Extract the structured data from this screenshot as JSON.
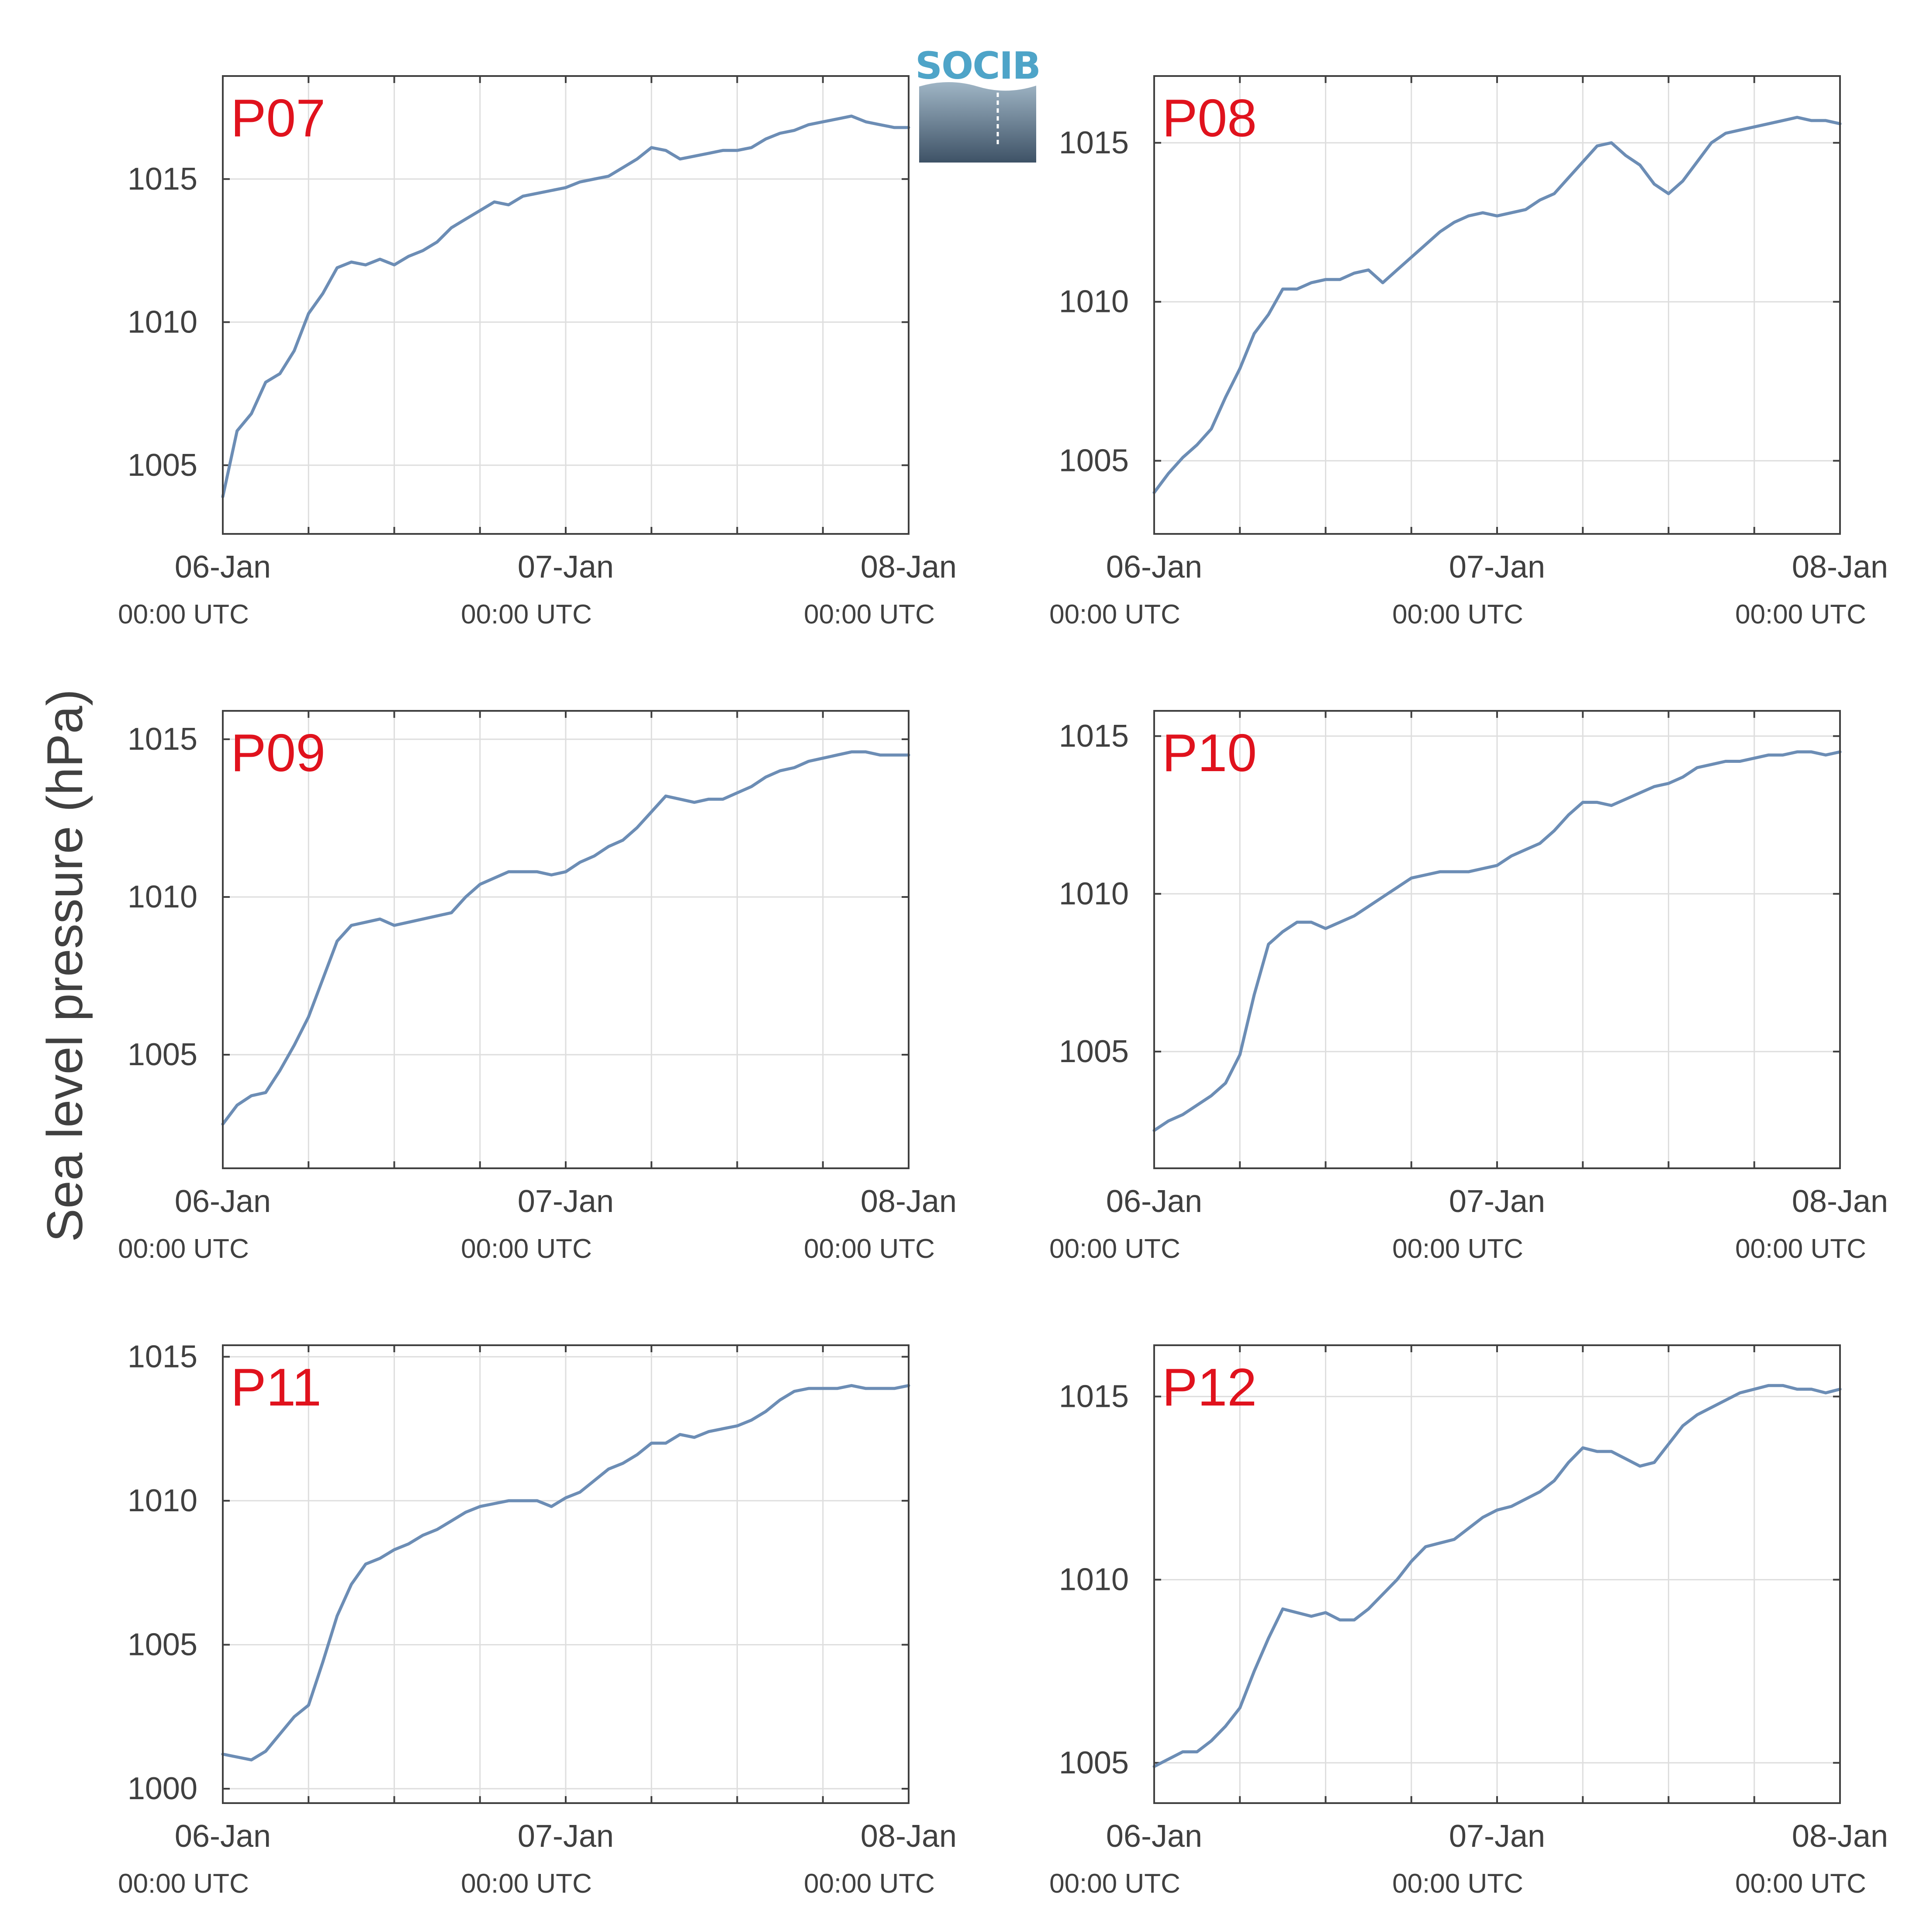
{
  "figure": {
    "ylabel": "Sea level pressure (hPa)",
    "logo_text": "SOCIB"
  },
  "colors": {
    "line": "#6c8db5",
    "station_label": "#e0121d",
    "axis": "#404040",
    "grid": "#dedede"
  },
  "chart_data": [
    {
      "type": "line",
      "title": "P07",
      "x_tick_labels": [
        {
          "date": "06-Jan",
          "time": "00:00 UTC"
        },
        {
          "date": "07-Jan",
          "time": "00:00 UTC"
        },
        {
          "date": "08-Jan",
          "time": "00:00 UTC"
        }
      ],
      "x_ticks_hours": [
        0,
        6,
        12,
        18,
        24,
        30,
        36,
        42,
        48
      ],
      "xlim_hours": [
        0,
        48
      ],
      "ylim": [
        1002.6,
        1018.6
      ],
      "yticks": [
        1005,
        1010,
        1015
      ],
      "grid": true,
      "x_hours": [
        0,
        1,
        2,
        3,
        4,
        5,
        6,
        7,
        8,
        9,
        10,
        11,
        12,
        13,
        14,
        15,
        16,
        17,
        18,
        19,
        20,
        21,
        22,
        23,
        24,
        25,
        26,
        27,
        28,
        29,
        30,
        31,
        32,
        33,
        34,
        35,
        36,
        37,
        38,
        39,
        40,
        41,
        42,
        43,
        44,
        45,
        46,
        47,
        48
      ],
      "y": [
        1003.9,
        1006.2,
        1006.8,
        1007.9,
        1008.2,
        1009.0,
        1010.3,
        1011.0,
        1011.9,
        1012.1,
        1012.0,
        1012.2,
        1012.0,
        1012.3,
        1012.5,
        1012.8,
        1013.3,
        1013.6,
        1013.9,
        1014.2,
        1014.1,
        1014.4,
        1014.5,
        1014.6,
        1014.7,
        1014.9,
        1015.0,
        1015.1,
        1015.4,
        1015.7,
        1016.1,
        1016.0,
        1015.7,
        1015.8,
        1015.9,
        1016.0,
        1016.0,
        1016.1,
        1016.4,
        1016.6,
        1016.7,
        1016.9,
        1017.0,
        1017.1,
        1017.2,
        1017.0,
        1016.9,
        1016.8,
        1016.8
      ]
    },
    {
      "type": "line",
      "title": "P08",
      "x_tick_labels": [
        {
          "date": "06-Jan",
          "time": "00:00 UTC"
        },
        {
          "date": "07-Jan",
          "time": "00:00 UTC"
        },
        {
          "date": "08-Jan",
          "time": "00:00 UTC"
        }
      ],
      "x_ticks_hours": [
        0,
        6,
        12,
        18,
        24,
        30,
        36,
        42,
        48
      ],
      "xlim_hours": [
        0,
        48
      ],
      "ylim": [
        1002.7,
        1017.1
      ],
      "yticks": [
        1005,
        1010,
        1015
      ],
      "grid": true,
      "x_hours": [
        0,
        1,
        2,
        3,
        4,
        5,
        6,
        7,
        8,
        9,
        10,
        11,
        12,
        13,
        14,
        15,
        16,
        17,
        18,
        19,
        20,
        21,
        22,
        23,
        24,
        25,
        26,
        27,
        28,
        29,
        30,
        31,
        32,
        33,
        34,
        35,
        36,
        37,
        38,
        39,
        40,
        41,
        42,
        43,
        44,
        45,
        46,
        47,
        48
      ],
      "y": [
        1004.0,
        1004.6,
        1005.1,
        1005.5,
        1006.0,
        1007.0,
        1007.9,
        1009.0,
        1009.6,
        1010.4,
        1010.4,
        1010.6,
        1010.7,
        1010.7,
        1010.9,
        1011.0,
        1010.6,
        1011.0,
        1011.4,
        1011.8,
        1012.2,
        1012.5,
        1012.7,
        1012.8,
        1012.7,
        1012.8,
        1012.9,
        1013.2,
        1013.4,
        1013.9,
        1014.4,
        1014.9,
        1015.0,
        1014.6,
        1014.3,
        1013.7,
        1013.4,
        1013.8,
        1014.4,
        1015.0,
        1015.3,
        1015.4,
        1015.5,
        1015.6,
        1015.7,
        1015.8,
        1015.7,
        1015.7,
        1015.6
      ]
    },
    {
      "type": "line",
      "title": "P09",
      "x_tick_labels": [
        {
          "date": "06-Jan",
          "time": "00:00 UTC"
        },
        {
          "date": "07-Jan",
          "time": "00:00 UTC"
        },
        {
          "date": "08-Jan",
          "time": "00:00 UTC"
        }
      ],
      "x_ticks_hours": [
        0,
        6,
        12,
        18,
        24,
        30,
        36,
        42,
        48
      ],
      "xlim_hours": [
        0,
        48
      ],
      "ylim": [
        1001.4,
        1015.9
      ],
      "yticks": [
        1005,
        1010,
        1015
      ],
      "grid": true,
      "x_hours": [
        0,
        1,
        2,
        3,
        4,
        5,
        6,
        7,
        8,
        9,
        10,
        11,
        12,
        13,
        14,
        15,
        16,
        17,
        18,
        19,
        20,
        21,
        22,
        23,
        24,
        25,
        26,
        27,
        28,
        29,
        30,
        31,
        32,
        33,
        34,
        35,
        36,
        37,
        38,
        39,
        40,
        41,
        42,
        43,
        44,
        45,
        46,
        47,
        48
      ],
      "y": [
        1002.8,
        1003.4,
        1003.7,
        1003.8,
        1004.5,
        1005.3,
        1006.2,
        1007.4,
        1008.6,
        1009.1,
        1009.2,
        1009.3,
        1009.1,
        1009.2,
        1009.3,
        1009.4,
        1009.5,
        1010.0,
        1010.4,
        1010.6,
        1010.8,
        1010.8,
        1010.8,
        1010.7,
        1010.8,
        1011.1,
        1011.3,
        1011.6,
        1011.8,
        1012.2,
        1012.7,
        1013.2,
        1013.1,
        1013.0,
        1013.1,
        1013.1,
        1013.3,
        1013.5,
        1013.8,
        1014.0,
        1014.1,
        1014.3,
        1014.4,
        1014.5,
        1014.6,
        1014.6,
        1014.5,
        1014.5,
        1014.5
      ]
    },
    {
      "type": "line",
      "title": "P10",
      "x_tick_labels": [
        {
          "date": "06-Jan",
          "time": "00:00 UTC"
        },
        {
          "date": "07-Jan",
          "time": "00:00 UTC"
        },
        {
          "date": "08-Jan",
          "time": "00:00 UTC"
        }
      ],
      "x_ticks_hours": [
        0,
        6,
        12,
        18,
        24,
        30,
        36,
        42,
        48
      ],
      "xlim_hours": [
        0,
        48
      ],
      "ylim": [
        1001.3,
        1015.8
      ],
      "yticks": [
        1005,
        1010,
        1015
      ],
      "grid": true,
      "x_hours": [
        0,
        1,
        2,
        3,
        4,
        5,
        6,
        7,
        8,
        9,
        10,
        11,
        12,
        13,
        14,
        15,
        16,
        17,
        18,
        19,
        20,
        21,
        22,
        23,
        24,
        25,
        26,
        27,
        28,
        29,
        30,
        31,
        32,
        33,
        34,
        35,
        36,
        37,
        38,
        39,
        40,
        41,
        42,
        43,
        44,
        45,
        46,
        47,
        48
      ],
      "y": [
        1002.5,
        1002.8,
        1003.0,
        1003.3,
        1003.6,
        1004.0,
        1004.9,
        1006.8,
        1008.4,
        1008.8,
        1009.1,
        1009.1,
        1008.9,
        1009.1,
        1009.3,
        1009.6,
        1009.9,
        1010.2,
        1010.5,
        1010.6,
        1010.7,
        1010.7,
        1010.7,
        1010.8,
        1010.9,
        1011.2,
        1011.4,
        1011.6,
        1012.0,
        1012.5,
        1012.9,
        1012.9,
        1012.8,
        1013.0,
        1013.2,
        1013.4,
        1013.5,
        1013.7,
        1014.0,
        1014.1,
        1014.2,
        1014.2,
        1014.3,
        1014.4,
        1014.4,
        1014.5,
        1014.5,
        1014.4,
        1014.5
      ]
    },
    {
      "type": "line",
      "title": "P11",
      "x_tick_labels": [
        {
          "date": "06-Jan",
          "time": "00:00 UTC"
        },
        {
          "date": "07-Jan",
          "time": "00:00 UTC"
        },
        {
          "date": "08-Jan",
          "time": "00:00 UTC"
        }
      ],
      "x_ticks_hours": [
        0,
        6,
        12,
        18,
        24,
        30,
        36,
        42,
        48
      ],
      "xlim_hours": [
        0,
        48
      ],
      "ylim": [
        999.5,
        1015.4
      ],
      "yticks": [
        1000,
        1005,
        1010,
        1015
      ],
      "grid": true,
      "x_hours": [
        0,
        1,
        2,
        3,
        4,
        5,
        6,
        7,
        8,
        9,
        10,
        11,
        12,
        13,
        14,
        15,
        16,
        17,
        18,
        19,
        20,
        21,
        22,
        23,
        24,
        25,
        26,
        27,
        28,
        29,
        30,
        31,
        32,
        33,
        34,
        35,
        36,
        37,
        38,
        39,
        40,
        41,
        42,
        43,
        44,
        45,
        46,
        47,
        48
      ],
      "y": [
        1001.2,
        1001.1,
        1001.0,
        1001.3,
        1001.9,
        1002.5,
        1002.9,
        1004.4,
        1006.0,
        1007.1,
        1007.8,
        1008.0,
        1008.3,
        1008.5,
        1008.8,
        1009.0,
        1009.3,
        1009.6,
        1009.8,
        1009.9,
        1010.0,
        1010.0,
        1010.0,
        1009.8,
        1010.1,
        1010.3,
        1010.7,
        1011.1,
        1011.3,
        1011.6,
        1012.0,
        1012.0,
        1012.3,
        1012.2,
        1012.4,
        1012.5,
        1012.6,
        1012.8,
        1013.1,
        1013.5,
        1013.8,
        1013.9,
        1013.9,
        1013.9,
        1014.0,
        1013.9,
        1013.9,
        1013.9,
        1014.0
      ]
    },
    {
      "type": "line",
      "title": "P12",
      "x_tick_labels": [
        {
          "date": "06-Jan",
          "time": "00:00 UTC"
        },
        {
          "date": "07-Jan",
          "time": "00:00 UTC"
        },
        {
          "date": "08-Jan",
          "time": "00:00 UTC"
        }
      ],
      "x_ticks_hours": [
        0,
        6,
        12,
        18,
        24,
        30,
        36,
        42,
        48
      ],
      "xlim_hours": [
        0,
        48
      ],
      "ylim": [
        1003.9,
        1016.4
      ],
      "yticks": [
        1005,
        1010,
        1015
      ],
      "grid": true,
      "x_hours": [
        0,
        1,
        2,
        3,
        4,
        5,
        6,
        7,
        8,
        9,
        10,
        11,
        12,
        13,
        14,
        15,
        16,
        17,
        18,
        19,
        20,
        21,
        22,
        23,
        24,
        25,
        26,
        27,
        28,
        29,
        30,
        31,
        32,
        33,
        34,
        35,
        36,
        37,
        38,
        39,
        40,
        41,
        42,
        43,
        44,
        45,
        46,
        47,
        48
      ],
      "y": [
        1004.9,
        1005.1,
        1005.3,
        1005.3,
        1005.6,
        1006.0,
        1006.5,
        1007.5,
        1008.4,
        1009.2,
        1009.1,
        1009.0,
        1009.1,
        1008.9,
        1008.9,
        1009.2,
        1009.6,
        1010.0,
        1010.5,
        1010.9,
        1011.0,
        1011.1,
        1011.4,
        1011.7,
        1011.9,
        1012.0,
        1012.2,
        1012.4,
        1012.7,
        1013.2,
        1013.6,
        1013.5,
        1013.5,
        1013.3,
        1013.1,
        1013.2,
        1013.7,
        1014.2,
        1014.5,
        1014.7,
        1014.9,
        1015.1,
        1015.2,
        1015.3,
        1015.3,
        1015.2,
        1015.2,
        1015.1,
        1015.2
      ]
    }
  ]
}
